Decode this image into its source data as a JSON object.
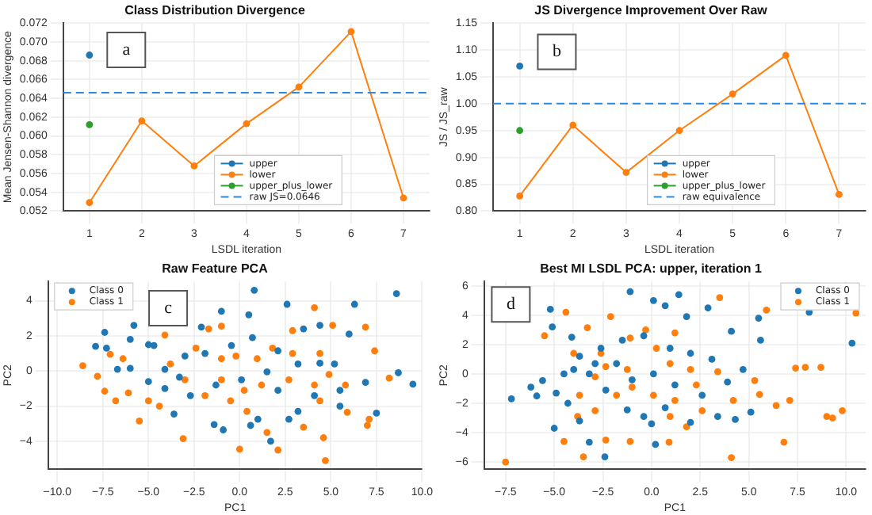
{
  "chart_data": [
    {
      "type": "line",
      "title": "Class Distribution Divergence",
      "xlabel": "LSDL iteration",
      "ylabel": "Mean Jensen-Shannon divergence",
      "categories": [
        "1",
        "2",
        "3",
        "4",
        "5",
        "6",
        "7"
      ],
      "series": [
        {
          "name": "upper",
          "color": "#1f77b4",
          "values": [
            0.0686,
            null,
            null,
            null,
            null,
            null,
            null
          ]
        },
        {
          "name": "lower",
          "color": "#ff7f0e",
          "values": [
            0.0529,
            0.0616,
            0.0568,
            0.0613,
            0.0652,
            0.0711,
            0.0534
          ]
        },
        {
          "name": "upper_plus_lower",
          "color": "#2ca02c",
          "values": [
            0.0612,
            null,
            null,
            null,
            null,
            null,
            null
          ]
        }
      ],
      "ylim": [
        0.052,
        0.072
      ],
      "yticks": [
        0.052,
        0.054,
        0.056,
        0.058,
        {
          "value": 0.06,
          "label": "0.060"
        },
        0.062,
        0.064,
        0.066,
        0.068,
        {
          "value": 0.07,
          "label": "0.070"
        },
        0.072
      ],
      "ref_lines": [
        {
          "axis": "y",
          "value": 0.0646,
          "label": "raw JS=0.0646",
          "color": "#2b8be0",
          "line_style": "dashed"
        }
      ],
      "grid": true,
      "legend": "bottom",
      "marker": "circle",
      "line_style": "solid",
      "annotations": [
        "a"
      ]
    },
    {
      "type": "line",
      "title": "JS Divergence Improvement Over Raw",
      "xlabel": "LSDL iteration",
      "ylabel": "JS / JS_raw",
      "categories": [
        "1",
        "2",
        "3",
        "4",
        "5",
        "6",
        "7"
      ],
      "series": [
        {
          "name": "upper",
          "color": "#1f77b4",
          "values": [
            1.07,
            null,
            null,
            null,
            null,
            null,
            null
          ]
        },
        {
          "name": "lower",
          "color": "#ff7f0e",
          "values": [
            0.828,
            0.96,
            0.872,
            0.95,
            1.018,
            1.09,
            0.831
          ]
        },
        {
          "name": "upper_plus_lower",
          "color": "#2ca02c",
          "values": [
            0.95,
            null,
            null,
            null,
            null,
            null,
            null
          ]
        }
      ],
      "ylim": [
        0.8,
        1.15
      ],
      "yticks": [
        {
          "value": 0.8,
          "label": "0.80"
        },
        0.85,
        {
          "value": 0.9,
          "label": "0.90"
        },
        0.95,
        {
          "value": 1,
          "label": "1.00"
        },
        1.05,
        {
          "value": 1.1,
          "label": "1.10"
        },
        1.15
      ],
      "ref_lines": [
        {
          "axis": "y",
          "value": 1,
          "label": "raw equivalence",
          "color": "#2b8be0",
          "line_style": "dashed"
        }
      ],
      "grid": true,
      "legend": "bottom",
      "marker": "circle",
      "line_style": "solid",
      "annotations": [
        "b"
      ]
    },
    {
      "type": "scatter",
      "title": "Raw Feature PCA",
      "xlabel": "PC1",
      "ylabel": "PC2",
      "series": [
        {
          "name": "Class 0",
          "color": "#1f77b4",
          "x": [
            -7.9,
            -7.4,
            -7.3,
            -5.8,
            -6.0,
            -5.0,
            -1.0,
            0.8,
            0.5,
            2.6,
            6.3,
            8.6,
            9.5,
            8.7,
            7.5,
            5.5,
            6.0,
            4.4,
            3.5,
            1.0,
            0.6,
            1.7,
            -0.9,
            -1.4,
            -3.6,
            -5.0,
            -6.0,
            -6.7,
            -4.1,
            -3.0,
            -1.9,
            -0.45,
            2.1,
            3.2,
            4.4,
            5.2,
            6.9,
            3.2,
            2.1,
            0.1,
            -1.3,
            -2.7,
            -4.1,
            -3.3,
            1.5,
            0.7,
            4.1,
            5.5,
            -4.7,
            -2.1,
            2.7
          ],
          "values": [
            1.4,
            2.2,
            1.3,
            2.6,
            1.8,
            1.5,
            3.4,
            4.6,
            3.2,
            3.8,
            3.8,
            4.4,
            -0.75,
            -0.1,
            -2.4,
            -2.0,
            2.1,
            2.6,
            2.4,
            -2.75,
            -3.1,
            -4.0,
            -3.35,
            -3.05,
            -2.45,
            -0.6,
            0.15,
            0.1,
            0.1,
            0.85,
            1.0,
            1.45,
            1.15,
            0.4,
            0.45,
            0.4,
            -0.65,
            -2.3,
            -1.1,
            -0.5,
            -0.8,
            -1.4,
            -1.0,
            -0.35,
            -0.05,
            1.9,
            -1.4,
            -1.1,
            1.45,
            2.5,
            -2.75
          ]
        },
        {
          "name": "Class 1",
          "color": "#ff7f0e",
          "x": [
            -8.6,
            -7.8,
            -7.4,
            -6.8,
            -7.1,
            -6.1,
            -5.5,
            -4.1,
            -4.4,
            -3.1,
            -1.7,
            -1.0,
            0.0,
            2.1,
            4.7,
            4.1,
            5.1,
            6.9,
            7.4,
            8.2,
            7.0,
            7.1,
            5.9,
            4.6,
            3.5,
            1.5,
            0.4,
            -0.5,
            -1.9,
            -3.0,
            -3.8,
            -2.4,
            -1.0,
            -0.2,
            0.96,
            1.8,
            2.9,
            4.4,
            4.9,
            5.8,
            4.1,
            2.7,
            1.2,
            0.25,
            -1.0,
            -5.0,
            -6.4,
            2.9,
            4.4
          ],
          "values": [
            0.3,
            -0.3,
            -1.15,
            -1.7,
            0.95,
            -1.25,
            -2.85,
            2.05,
            -2.0,
            -3.85,
            2.4,
            2.55,
            -4.45,
            -4.5,
            -5.1,
            3.6,
            2.6,
            2.5,
            1.15,
            -0.4,
            -3.1,
            -2.75,
            -2.35,
            -3.8,
            -3.2,
            -3.5,
            -2.3,
            -1.7,
            -1.4,
            -0.5,
            0.4,
            1.3,
            0.7,
            0.85,
            0.7,
            1.3,
            1.0,
            1.0,
            -0.2,
            -0.8,
            -0.8,
            -0.5,
            -0.8,
            -1.1,
            -0.5,
            -1.7,
            0.7,
            2.3,
            -1.7
          ]
        }
      ],
      "xlim": [
        -10.5,
        10
      ],
      "xticks": [
        {
          "value": -10,
          "label": "−10.0"
        },
        {
          "value": -7.5,
          "label": "−7.5"
        },
        {
          "value": -5,
          "label": "−5.0"
        },
        {
          "value": -2.5,
          "label": "−2.5"
        },
        {
          "value": 0,
          "label": "0.0"
        },
        {
          "value": 2.5,
          "label": "2.5"
        },
        {
          "value": 5,
          "label": "5.0"
        },
        {
          "value": 7.5,
          "label": "7.5"
        },
        {
          "value": 10,
          "label": "10.0"
        }
      ],
      "ylim": [
        -5.6,
        5.1
      ],
      "yticks": [
        {
          "value": -4,
          "label": "−4"
        },
        {
          "value": -2,
          "label": "−2"
        },
        0,
        2,
        4
      ],
      "grid": true,
      "legend": "top left",
      "marker": "circle",
      "annotations": [
        "c"
      ]
    },
    {
      "type": "scatter",
      "title": "Best MI LSDL PCA: upper, iteration 1",
      "xlabel": "PC1",
      "ylabel": "PC2",
      "series": [
        {
          "name": "Class 0",
          "color": "#1f77b4",
          "x": [
            -7.2,
            -6.2,
            -5.9,
            -5.6,
            -5.2,
            -5.1,
            -5.0,
            -4.3,
            -4.1,
            -4.0,
            -3.2,
            -2.4,
            -1.1,
            0.1,
            1.4,
            0.7,
            1.8,
            2.9,
            4.1,
            4.7,
            5.5,
            5.6,
            8.1,
            10.3,
            5.1,
            3.4,
            4.3,
            2.0,
            0.2,
            0.0,
            -1.25,
            -2.35,
            -3.2,
            -3.7,
            -2.6,
            -1.5,
            -0.4,
            0.95,
            2.0,
            3.1,
            3.9,
            2.6,
            1.2,
            0.1,
            -1.0,
            -1.8,
            -2.9,
            -4.5,
            -4.9,
            -3.7,
            -0.4,
            0.7
          ],
          "values": [
            -1.7,
            -0.9,
            -1.5,
            -0.45,
            4.4,
            3.2,
            -3.7,
            -2.0,
            2.5,
            0.3,
            -4.65,
            -5.65,
            5.6,
            5.0,
            5.4,
            4.65,
            3.9,
            4.5,
            2.9,
            0.3,
            3.8,
            2.3,
            4.2,
            2.1,
            -2.6,
            -2.9,
            -3.1,
            -3.3,
            -4.8,
            -3.4,
            -2.45,
            -1.1,
            0.0,
            1.2,
            1.75,
            2.3,
            2.6,
            1.75,
            1.4,
            1.0,
            -0.55,
            -1.45,
            -0.75,
            0.0,
            -0.4,
            0.7,
            0.7,
            0.0,
            -1.3,
            -3.2,
            -2.9,
            -2.3
          ]
        },
        {
          "name": "Class 1",
          "color": "#ff7f0e",
          "x": [
            -7.5,
            -5.5,
            -4.4,
            -4.5,
            -3.5,
            -2.35,
            -1.1,
            0.9,
            4.1,
            6.8,
            3.5,
            5.9,
            7.4,
            7.9,
            8.7,
            9.0,
            9.3,
            9.8,
            10.5,
            6.4,
            7.1,
            5.55,
            5.3,
            4.2,
            2.6,
            1.8,
            0.95,
            1.2,
            0.1,
            -1.0,
            -1.8,
            -2.9,
            -3.8,
            -3.7,
            -4.0,
            -3.3,
            -2.1,
            -1.1,
            -0.3,
            0.25,
            1.2,
            0.95,
            2.0,
            2.3,
            3.4,
            -1.25,
            -2.6,
            -2.9,
            -2.35
          ],
          "values": [
            -6.0,
            2.6,
            4.2,
            -4.6,
            -5.65,
            -4.5,
            -4.6,
            -4.65,
            -5.7,
            -4.65,
            5.2,
            4.35,
            0.4,
            0.45,
            0.45,
            -2.9,
            -3.0,
            -2.5,
            4.15,
            -2.15,
            -1.8,
            -1.4,
            -0.45,
            -1.8,
            -2.5,
            -3.6,
            -2.9,
            -1.8,
            -1.45,
            -0.9,
            -1.45,
            -2.5,
            -2.9,
            -1.45,
            1.4,
            3.15,
            3.9,
            2.45,
            3.0,
            1.75,
            2.8,
            0.7,
            0.3,
            -0.75,
            0.15,
            0.3,
            1.4,
            -0.2,
            0.5
          ]
        }
      ],
      "xlim": [
        -8.6,
        11
      ],
      "xticks": [
        {
          "value": -7.5,
          "label": "−7.5"
        },
        {
          "value": -5,
          "label": "−5.0"
        },
        {
          "value": -2.5,
          "label": "−2.5"
        },
        {
          "value": 0,
          "label": "0.0"
        },
        {
          "value": 2.5,
          "label": "2.5"
        },
        {
          "value": 5,
          "label": "5.0"
        },
        {
          "value": 7.5,
          "label": "7.5"
        },
        {
          "value": 10,
          "label": "10.0"
        }
      ],
      "ylim": [
        -6.5,
        6.3
      ],
      "yticks": [
        {
          "value": -6,
          "label": "−6"
        },
        {
          "value": -4,
          "label": "−4"
        },
        {
          "value": -2,
          "label": "−2"
        },
        0,
        2,
        4,
        6
      ],
      "grid": true,
      "legend": "top right",
      "marker": "circle",
      "annotations": [
        "d"
      ]
    }
  ]
}
